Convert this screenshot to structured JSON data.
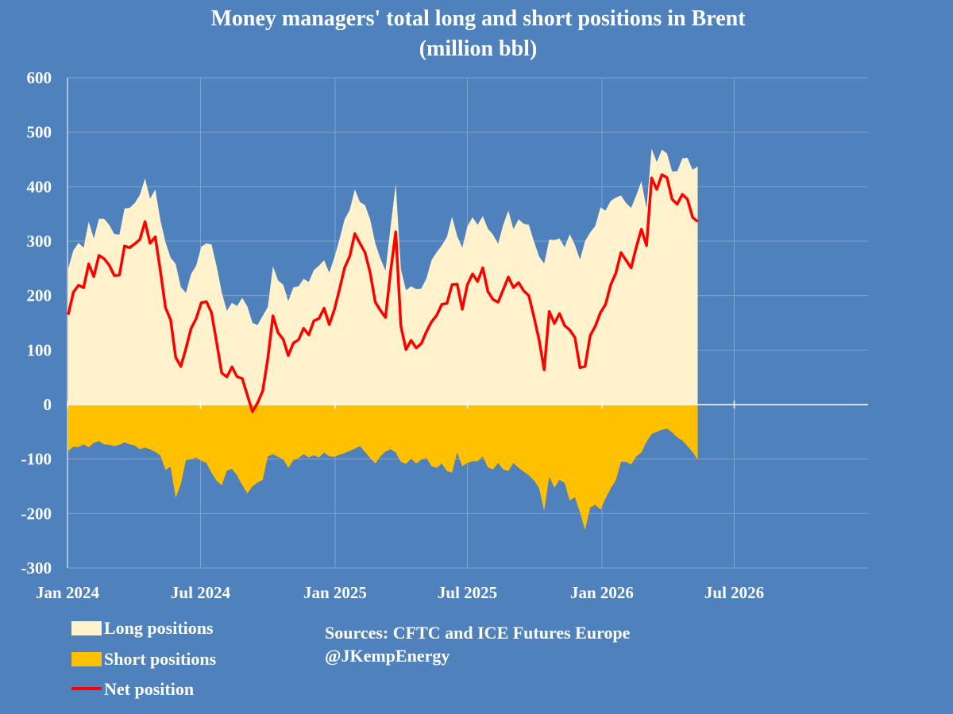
{
  "chart_data": {
    "type": "area",
    "title": "Money managers' total long and short positions in Brent",
    "subtitle": "(million bbl)",
    "x_tick_labels": [
      "Jan 2024",
      "Jul 2024",
      "Jan 2025",
      "Jul 2025",
      "Jan 2026",
      "Jul 2026"
    ],
    "x_range": [
      "2024-01-01",
      "2026-12-31"
    ],
    "y_ticks": [
      600,
      500,
      400,
      300,
      200,
      100,
      0,
      -100,
      -200,
      -300
    ],
    "ylim": [
      -300,
      600
    ],
    "grid": true,
    "start_date": "2024-01-02",
    "period_days": 7,
    "series": [
      {
        "name": "Long positions",
        "color": "#fff2cc",
        "values": [
          250,
          283,
          297,
          288,
          336,
          305,
          341,
          341,
          330,
          313,
          312,
          360,
          361,
          370,
          385,
          415,
          378,
          395,
          339,
          298,
          270,
          258,
          216,
          205,
          240,
          255,
          290,
          296,
          294,
          254,
          206,
          172,
          187,
          181,
          196,
          180,
          150,
          146,
          163,
          179,
          254,
          228,
          220,
          190,
          215,
          217,
          231,
          225,
          247,
          255,
          265,
          242,
          270,
          303,
          340,
          357,
          395,
          372,
          366,
          340,
          296,
          268,
          246,
          327,
          405,
          249,
          210,
          217,
          212,
          213,
          232,
          265,
          280,
          292,
          308,
          345,
          309,
          288,
          327,
          344,
          330,
          346,
          323,
          312,
          295,
          330,
          356,
          322,
          340,
          332,
          330,
          300,
          272,
          259,
          303,
          302,
          305,
          289,
          313,
          293,
          266,
          300,
          316,
          328,
          362,
          356,
          374,
          380,
          384,
          370,
          361,
          384,
          410,
          360,
          470,
          445,
          468,
          461,
          428,
          428,
          452,
          453,
          431,
          437
        ]
      },
      {
        "name": "Short positions",
        "color": "#ffc000",
        "values": [
          -85,
          -77,
          -78,
          -73,
          -78,
          -70,
          -67,
          -73,
          -74,
          -76,
          -74,
          -69,
          -73,
          -75,
          -82,
          -79,
          -82,
          -87,
          -93,
          -120,
          -114,
          -171,
          -146,
          -102,
          -100,
          -97,
          -103,
          -107,
          -125,
          -140,
          -148,
          -121,
          -118,
          -130,
          -148,
          -163,
          -150,
          -143,
          -138,
          -95,
          -91,
          -96,
          -100,
          -116,
          -102,
          -98,
          -91,
          -97,
          -93,
          -97,
          -88,
          -95,
          -96,
          -92,
          -89,
          -85,
          -81,
          -76,
          -87,
          -98,
          -108,
          -95,
          -86,
          -82,
          -88,
          -105,
          -109,
          -99,
          -108,
          -101,
          -98,
          -113,
          -116,
          -108,
          -122,
          -125,
          -88,
          -113,
          -107,
          -104,
          -104,
          -95,
          -115,
          -119,
          -107,
          -119,
          -122,
          -107,
          -116,
          -123,
          -130,
          -139,
          -153,
          -195,
          -132,
          -153,
          -138,
          -144,
          -176,
          -170,
          -198,
          -230,
          -189,
          -184,
          -193,
          -172,
          -154,
          -139,
          -105,
          -105,
          -110,
          -95,
          -88,
          -68,
          -54,
          -50,
          -46,
          -44,
          -51,
          -60,
          -66,
          -76,
          -87,
          -101
        ]
      },
      {
        "name": "Net position",
        "color": "#ff0000",
        "values": [
          165,
          206,
          219,
          215,
          258,
          235,
          274,
          268,
          256,
          237,
          238,
          291,
          288,
          295,
          303,
          336,
          296,
          308,
          246,
          178,
          156,
          87,
          70,
          103,
          140,
          158,
          187,
          189,
          169,
          114,
          58,
          51,
          69,
          51,
          48,
          17,
          -13,
          3,
          25,
          84,
          163,
          132,
          120,
          90,
          113,
          119,
          140,
          128,
          154,
          158,
          177,
          147,
          174,
          211,
          251,
          272,
          314,
          296,
          279,
          242,
          188,
          173,
          160,
          245,
          317,
          144,
          101,
          118,
          104,
          112,
          134,
          152,
          164,
          184,
          186,
          220,
          221,
          175,
          220,
          240,
          226,
          251,
          208,
          193,
          188,
          211,
          234,
          215,
          224,
          209,
          200,
          161,
          119,
          64,
          171,
          149,
          167,
          145,
          137,
          123,
          68,
          70,
          127,
          144,
          169,
          184,
          220,
          241,
          279,
          265,
          251,
          289,
          322,
          292,
          416,
          395,
          422,
          417,
          377,
          368,
          386,
          377,
          344,
          336
        ]
      }
    ]
  },
  "legend": {
    "long_label": "Long positions",
    "short_label": "Short positions",
    "net_label": "Net position"
  },
  "sources": {
    "line1": "Sources: CFTC and ICE Futures Europe",
    "line2": "@JKempEnergy"
  },
  "colors": {
    "background": "#4f81bd",
    "plot_bg": "#4f81bd",
    "grid": "#7fa3d0",
    "long": "#fff2cc",
    "short": "#ffc000",
    "net": "#ff0000"
  }
}
